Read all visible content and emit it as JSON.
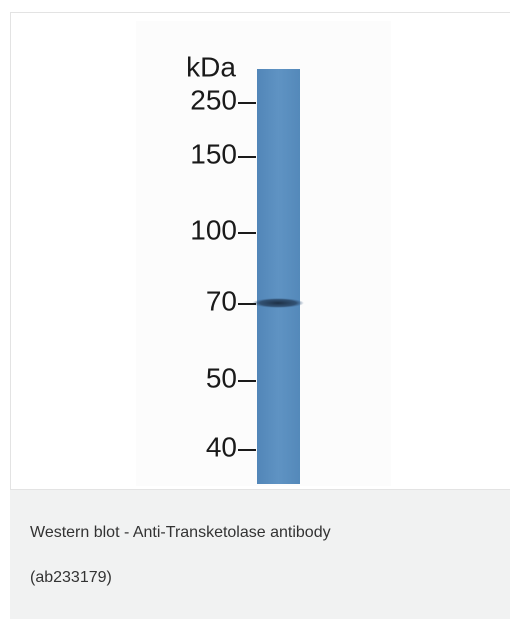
{
  "figure": {
    "unit_label": "kDa",
    "markers": [
      "250",
      "150",
      "100",
      "70",
      "50",
      "40"
    ]
  },
  "caption": {
    "lines": [
      "Western blot - Anti-Transketolase antibody",
      "(ab233179)"
    ]
  }
}
